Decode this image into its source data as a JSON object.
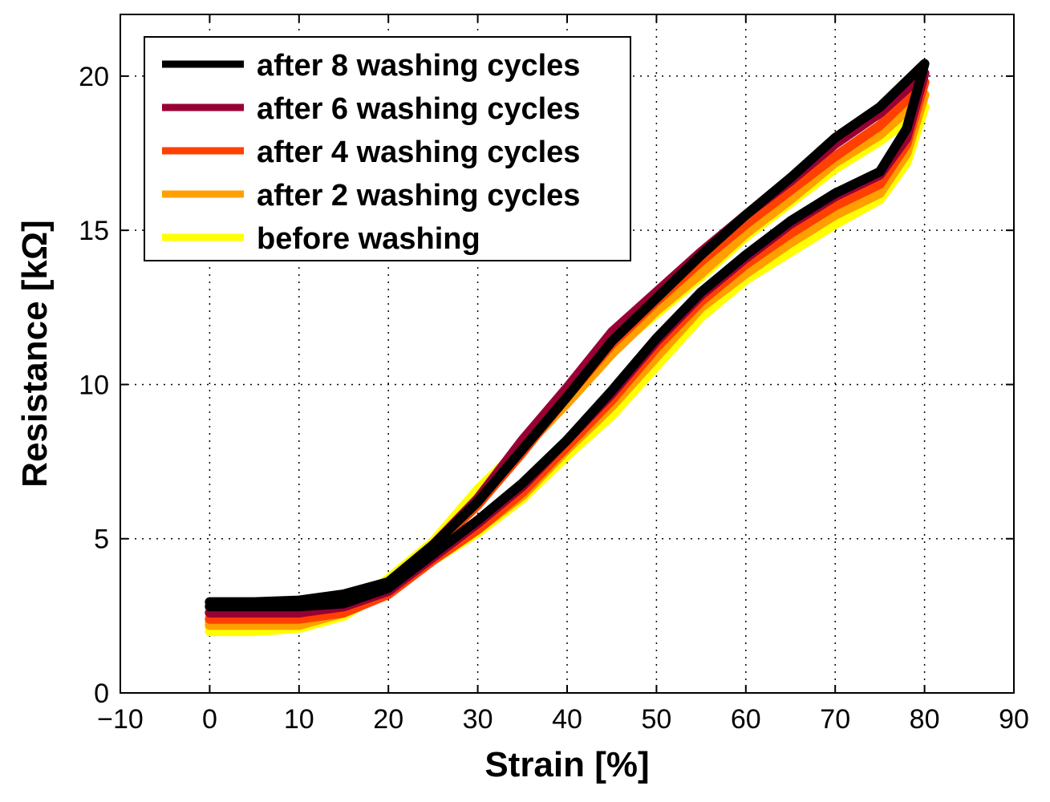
{
  "chart_data": {
    "type": "line",
    "title": "",
    "xlabel": "Strain [%]",
    "ylabel": "Resistance [kΩ]",
    "xlim": [
      -10,
      90
    ],
    "ylim": [
      0,
      22
    ],
    "xticks": [
      -10,
      0,
      10,
      20,
      30,
      40,
      50,
      60,
      70,
      80,
      90
    ],
    "yticks": [
      0,
      5,
      10,
      15,
      20
    ],
    "xtick_labels": [
      "−10",
      "0",
      "10",
      "20",
      "30",
      "40",
      "50",
      "60",
      "70",
      "80",
      "90"
    ],
    "ytick_labels": [
      "0",
      "5",
      "10",
      "15",
      "20"
    ],
    "grid": true,
    "legend_position": "top-left",
    "series": [
      {
        "name": "before washing",
        "color": "#FFFF00",
        "loading": [
          [
            0,
            2.1
          ],
          [
            5,
            2.1
          ],
          [
            10,
            2.3
          ],
          [
            15,
            2.6
          ],
          [
            20,
            3.7
          ],
          [
            25,
            4.9
          ],
          [
            30,
            6.6
          ],
          [
            35,
            8.0
          ],
          [
            40,
            9.6
          ],
          [
            45,
            11.1
          ],
          [
            50,
            12.3
          ],
          [
            55,
            13.5
          ],
          [
            60,
            14.8
          ],
          [
            65,
            15.9
          ],
          [
            70,
            17.0
          ],
          [
            75,
            17.9
          ],
          [
            80,
            19.0
          ]
        ],
        "unloading": [
          [
            80,
            19.0
          ],
          [
            78,
            17.2
          ],
          [
            75,
            16.0
          ],
          [
            70,
            15.2
          ],
          [
            65,
            14.3
          ],
          [
            60,
            13.4
          ],
          [
            55,
            12.2
          ],
          [
            50,
            10.6
          ],
          [
            45,
            9.0
          ],
          [
            40,
            7.7
          ],
          [
            35,
            6.3
          ],
          [
            30,
            5.2
          ],
          [
            25,
            4.3
          ],
          [
            20,
            3.4
          ],
          [
            15,
            2.5
          ],
          [
            10,
            2.1
          ],
          [
            5,
            2.0
          ],
          [
            0,
            2.0
          ]
        ]
      },
      {
        "name": "after 2 washing cycles",
        "color": "#FFA000",
        "loading": [
          [
            0,
            2.3
          ],
          [
            5,
            2.3
          ],
          [
            10,
            2.4
          ],
          [
            15,
            2.7
          ],
          [
            20,
            3.6
          ],
          [
            25,
            4.8
          ],
          [
            30,
            6.3
          ],
          [
            35,
            7.9
          ],
          [
            40,
            9.4
          ],
          [
            45,
            11.0
          ],
          [
            50,
            12.4
          ],
          [
            55,
            13.6
          ],
          [
            60,
            14.9
          ],
          [
            65,
            16.0
          ],
          [
            70,
            17.2
          ],
          [
            75,
            18.1
          ],
          [
            80,
            19.4
          ]
        ],
        "unloading": [
          [
            80,
            19.4
          ],
          [
            78,
            17.5
          ],
          [
            75,
            16.2
          ],
          [
            70,
            15.5
          ],
          [
            65,
            14.6
          ],
          [
            60,
            13.6
          ],
          [
            55,
            12.5
          ],
          [
            50,
            10.9
          ],
          [
            45,
            9.3
          ],
          [
            40,
            7.9
          ],
          [
            35,
            6.4
          ],
          [
            30,
            5.3
          ],
          [
            25,
            4.4
          ],
          [
            20,
            3.3
          ],
          [
            15,
            2.6
          ],
          [
            10,
            2.2
          ],
          [
            5,
            2.2
          ],
          [
            0,
            2.2
          ]
        ]
      },
      {
        "name": "after 4 washing cycles",
        "color": "#FF4000",
        "loading": [
          [
            0,
            2.6
          ],
          [
            5,
            2.6
          ],
          [
            10,
            2.7
          ],
          [
            15,
            2.9
          ],
          [
            20,
            3.5
          ],
          [
            25,
            4.7
          ],
          [
            30,
            6.1
          ],
          [
            35,
            7.8
          ],
          [
            40,
            9.6
          ],
          [
            45,
            11.3
          ],
          [
            50,
            12.7
          ],
          [
            55,
            14.0
          ],
          [
            60,
            15.2
          ],
          [
            65,
            16.3
          ],
          [
            70,
            17.4
          ],
          [
            75,
            18.4
          ],
          [
            80,
            19.8
          ]
        ],
        "unloading": [
          [
            80,
            19.8
          ],
          [
            78,
            17.8
          ],
          [
            75,
            16.5
          ],
          [
            70,
            15.8
          ],
          [
            65,
            14.9
          ],
          [
            60,
            13.9
          ],
          [
            55,
            12.7
          ],
          [
            50,
            11.2
          ],
          [
            45,
            9.5
          ],
          [
            40,
            8.0
          ],
          [
            35,
            6.5
          ],
          [
            30,
            5.3
          ],
          [
            25,
            4.3
          ],
          [
            20,
            3.2
          ],
          [
            15,
            2.6
          ],
          [
            10,
            2.4
          ],
          [
            5,
            2.4
          ],
          [
            0,
            2.4
          ]
        ]
      },
      {
        "name": "after 6 washing cycles",
        "color": "#990033",
        "loading": [
          [
            0,
            2.8
          ],
          [
            5,
            2.8
          ],
          [
            10,
            2.9
          ],
          [
            15,
            3.1
          ],
          [
            20,
            3.6
          ],
          [
            25,
            4.8
          ],
          [
            30,
            6.3
          ],
          [
            35,
            8.2
          ],
          [
            40,
            9.9
          ],
          [
            45,
            11.7
          ],
          [
            50,
            13.0
          ],
          [
            55,
            14.3
          ],
          [
            60,
            15.5
          ],
          [
            65,
            16.6
          ],
          [
            70,
            17.8
          ],
          [
            75,
            18.8
          ],
          [
            80,
            20.1
          ]
        ],
        "unloading": [
          [
            80,
            20.1
          ],
          [
            78,
            18.0
          ],
          [
            75,
            16.8
          ],
          [
            70,
            16.1
          ],
          [
            65,
            15.2
          ],
          [
            60,
            14.1
          ],
          [
            55,
            12.9
          ],
          [
            50,
            11.4
          ],
          [
            45,
            9.7
          ],
          [
            40,
            8.2
          ],
          [
            35,
            6.7
          ],
          [
            30,
            5.5
          ],
          [
            25,
            4.4
          ],
          [
            20,
            3.3
          ],
          [
            15,
            2.8
          ],
          [
            10,
            2.6
          ],
          [
            5,
            2.6
          ],
          [
            0,
            2.6
          ]
        ]
      },
      {
        "name": "after 8 washing cycles",
        "color": "#000000",
        "loading": [
          [
            0,
            2.95
          ],
          [
            5,
            2.95
          ],
          [
            10,
            3.0
          ],
          [
            15,
            3.2
          ],
          [
            20,
            3.6
          ],
          [
            25,
            4.8
          ],
          [
            30,
            6.2
          ],
          [
            35,
            7.9
          ],
          [
            40,
            9.6
          ],
          [
            45,
            11.4
          ],
          [
            50,
            12.8
          ],
          [
            55,
            14.2
          ],
          [
            60,
            15.5
          ],
          [
            65,
            16.7
          ],
          [
            70,
            18.0
          ],
          [
            75,
            19.0
          ],
          [
            80,
            20.4
          ]
        ],
        "unloading": [
          [
            80,
            20.4
          ],
          [
            78,
            18.3
          ],
          [
            75,
            16.9
          ],
          [
            70,
            16.2
          ],
          [
            65,
            15.3
          ],
          [
            60,
            14.2
          ],
          [
            55,
            13.0
          ],
          [
            50,
            11.5
          ],
          [
            45,
            9.8
          ],
          [
            40,
            8.2
          ],
          [
            35,
            6.8
          ],
          [
            30,
            5.6
          ],
          [
            25,
            4.5
          ],
          [
            20,
            3.4
          ],
          [
            15,
            2.9
          ],
          [
            10,
            2.8
          ],
          [
            5,
            2.8
          ],
          [
            0,
            2.8
          ]
        ]
      }
    ],
    "legend_entries": [
      {
        "label": "after 8 washing cycles",
        "color": "#000000"
      },
      {
        "label": "after 6 washing cycles",
        "color": "#990033"
      },
      {
        "label": "after 4 washing cycles",
        "color": "#FF4000"
      },
      {
        "label": "after 2 washing cycles",
        "color": "#FFA000"
      },
      {
        "label": "before washing",
        "color": "#FFFF00"
      }
    ]
  }
}
